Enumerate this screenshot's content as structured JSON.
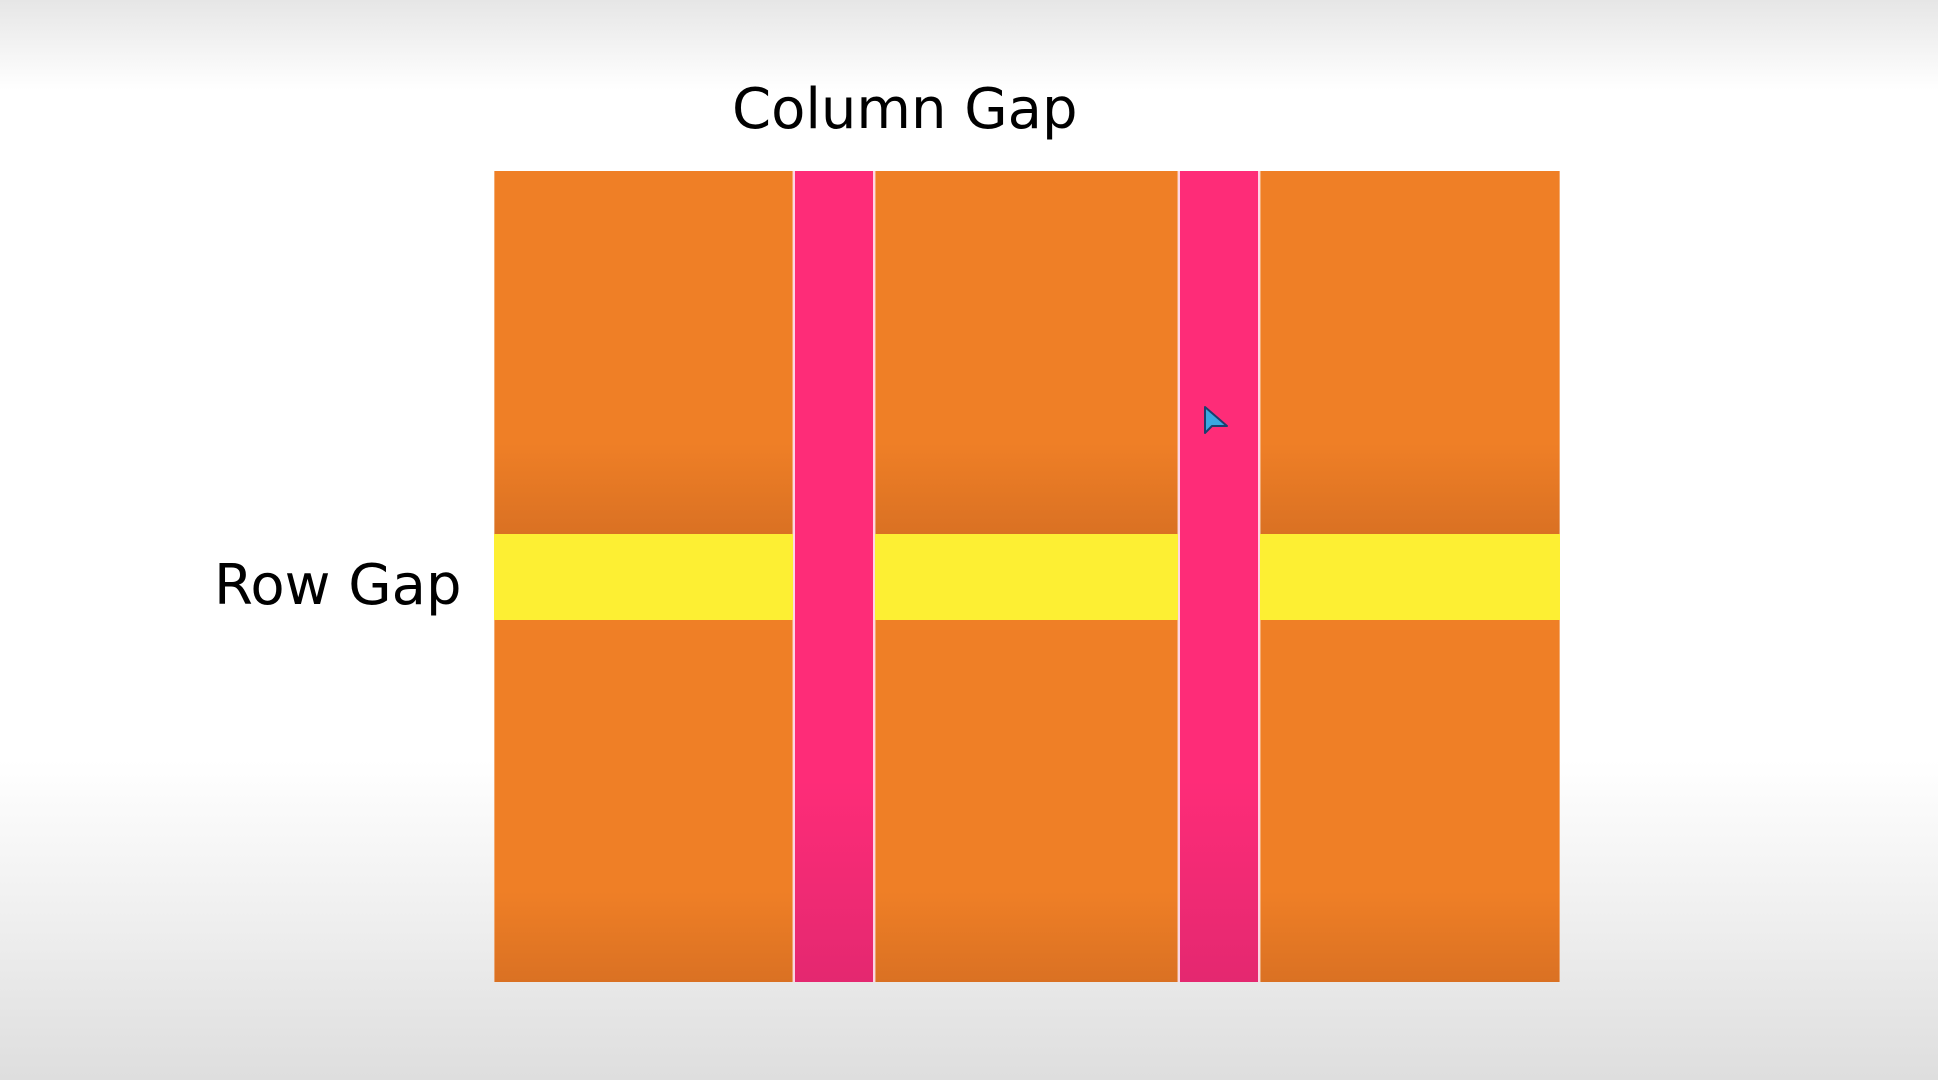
{
  "labels": {
    "column_gap": "Column Gap",
    "row_gap": "Row Gap"
  },
  "colors": {
    "cell": "#ef7f26",
    "column_gap": "#fe2c78",
    "row_gap": "#fdef33",
    "cursor": "#3aa7e0"
  },
  "icons": {
    "cursor": "mouse-pointer-icon"
  }
}
